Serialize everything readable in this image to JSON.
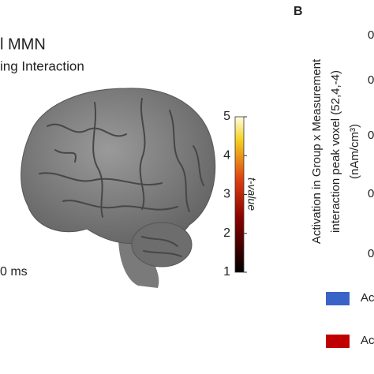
{
  "panel_a": {
    "title_fragment": "l MMN",
    "subtitle_fragment": "ing Interaction",
    "time_label": "0 ms",
    "colorbar": {
      "label": "t-value",
      "lim": [
        1,
        5
      ],
      "ticks": [
        1,
        2,
        3,
        4,
        5
      ]
    }
  },
  "panel_b": {
    "label": "B",
    "y_axis_label": [
      "Activation in Group x Measurement",
      "interaction peak voxel (52,4,-4)",
      "(nAm/cm³)"
    ],
    "tick_fragments": [
      "0",
      "0",
      "0",
      "0",
      "0"
    ],
    "legend": [
      {
        "text": "Ac",
        "color": "#3a63c8"
      },
      {
        "text": "Ac",
        "color": "#c00000"
      }
    ]
  }
}
